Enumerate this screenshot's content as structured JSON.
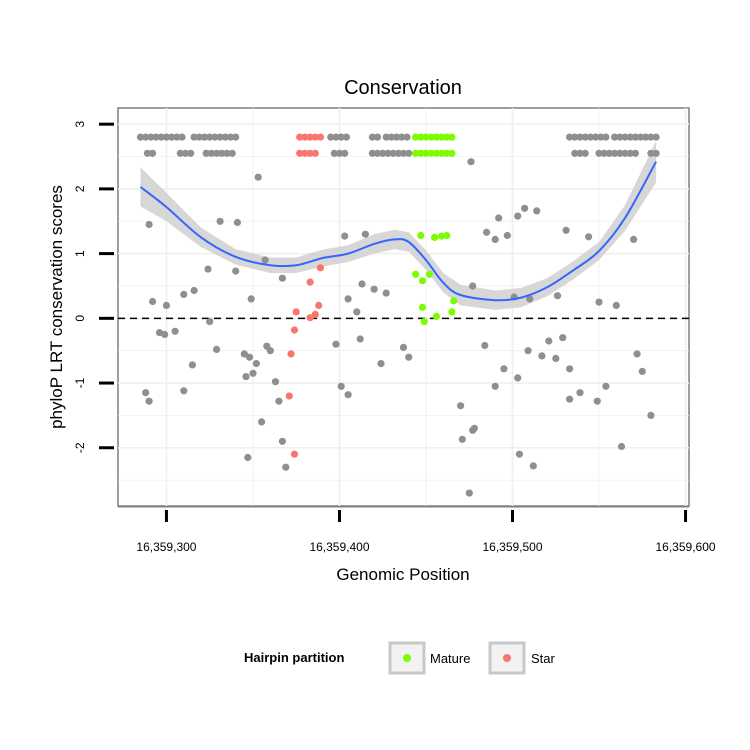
{
  "chart_data": {
    "type": "scatter",
    "title": "Conservation",
    "xlabel": "Genomic Position",
    "ylabel": "phyloP LRT conservation scores",
    "xlim": [
      16359272,
      16359602
    ],
    "ylim": [
      -2.9,
      3.25
    ],
    "x_ticks": [
      {
        "value": 16359300,
        "label": "16,359,300"
      },
      {
        "value": 16359400,
        "label": "16,359,400"
      },
      {
        "value": 16359500,
        "label": "16,359,500"
      },
      {
        "value": 16359600,
        "label": "16,359,600"
      }
    ],
    "y_ticks": [
      {
        "value": -2,
        "label": "-2"
      },
      {
        "value": -1,
        "label": "-1"
      },
      {
        "value": 0,
        "label": "0"
      },
      {
        "value": 1,
        "label": "1"
      },
      {
        "value": 2,
        "label": "2"
      },
      {
        "value": 3,
        "label": "3"
      }
    ],
    "grid": true,
    "reference_line": {
      "y": 0,
      "style": "dashed"
    },
    "legend": {
      "title": "Hairpin partition",
      "position": "bottom",
      "entries": [
        {
          "label": "Mature",
          "color": "#7cfc00"
        },
        {
          "label": "Star",
          "color": "#f8766d"
        }
      ]
    },
    "colors": {
      "other": "#8f8f8f",
      "Mature": "#7cfc00",
      "Star": "#f8766d",
      "smooth_line": "#3366ff",
      "ribbon": "#d3d3d3"
    },
    "series": [
      {
        "name": "Mature",
        "points": [
          [
            16359444,
            2.8
          ],
          [
            16359447,
            2.8
          ],
          [
            16359450,
            2.8
          ],
          [
            16359453,
            2.8
          ],
          [
            16359456,
            2.8
          ],
          [
            16359459,
            2.8
          ],
          [
            16359462,
            2.8
          ],
          [
            16359465,
            2.8
          ],
          [
            16359444,
            2.55
          ],
          [
            16359447,
            2.55
          ],
          [
            16359450,
            2.55
          ],
          [
            16359453,
            2.55
          ],
          [
            16359456,
            2.55
          ],
          [
            16359459,
            2.55
          ],
          [
            16359462,
            2.55
          ],
          [
            16359465,
            2.55
          ],
          [
            16359447,
            1.28
          ],
          [
            16359455,
            1.25
          ],
          [
            16359459,
            1.27
          ],
          [
            16359462,
            1.28
          ],
          [
            16359452,
            0.68
          ],
          [
            16359444,
            0.68
          ],
          [
            16359448,
            0.58
          ],
          [
            16359466,
            0.27
          ],
          [
            16359448,
            0.17
          ],
          [
            16359465,
            0.1
          ],
          [
            16359456,
            0.03
          ],
          [
            16359449,
            -0.05
          ]
        ]
      },
      {
        "name": "Star",
        "points": [
          [
            16359377,
            2.8
          ],
          [
            16359380,
            2.8
          ],
          [
            16359383,
            2.8
          ],
          [
            16359386,
            2.8
          ],
          [
            16359389,
            2.8
          ],
          [
            16359377,
            2.55
          ],
          [
            16359380,
            2.55
          ],
          [
            16359383,
            2.55
          ],
          [
            16359386,
            2.55
          ],
          [
            16359389,
            0.78
          ],
          [
            16359383,
            0.56
          ],
          [
            16359388,
            0.2
          ],
          [
            16359375,
            0.1
          ],
          [
            16359386,
            0.06
          ],
          [
            16359383,
            0.01
          ],
          [
            16359374,
            -0.18
          ],
          [
            16359372,
            -0.55
          ],
          [
            16359371,
            -1.2
          ],
          [
            16359374,
            -2.1
          ]
        ]
      },
      {
        "name": "",
        "points": [
          [
            16359285,
            2.8
          ],
          [
            16359288,
            2.8
          ],
          [
            16359291,
            2.8
          ],
          [
            16359294,
            2.8
          ],
          [
            16359297,
            2.8
          ],
          [
            16359300,
            2.8
          ],
          [
            16359303,
            2.8
          ],
          [
            16359306,
            2.8
          ],
          [
            16359309,
            2.8
          ],
          [
            16359316,
            2.8
          ],
          [
            16359319,
            2.8
          ],
          [
            16359322,
            2.8
          ],
          [
            16359325,
            2.8
          ],
          [
            16359328,
            2.8
          ],
          [
            16359331,
            2.8
          ],
          [
            16359334,
            2.8
          ],
          [
            16359337,
            2.8
          ],
          [
            16359340,
            2.8
          ],
          [
            16359395,
            2.8
          ],
          [
            16359398,
            2.8
          ],
          [
            16359401,
            2.8
          ],
          [
            16359404,
            2.8
          ],
          [
            16359419,
            2.8
          ],
          [
            16359422,
            2.8
          ],
          [
            16359427,
            2.8
          ],
          [
            16359430,
            2.8
          ],
          [
            16359433,
            2.8
          ],
          [
            16359436,
            2.8
          ],
          [
            16359439,
            2.8
          ],
          [
            16359533,
            2.8
          ],
          [
            16359536,
            2.8
          ],
          [
            16359539,
            2.8
          ],
          [
            16359542,
            2.8
          ],
          [
            16359545,
            2.8
          ],
          [
            16359548,
            2.8
          ],
          [
            16359551,
            2.8
          ],
          [
            16359554,
            2.8
          ],
          [
            16359559,
            2.8
          ],
          [
            16359562,
            2.8
          ],
          [
            16359565,
            2.8
          ],
          [
            16359568,
            2.8
          ],
          [
            16359571,
            2.8
          ],
          [
            16359574,
            2.8
          ],
          [
            16359577,
            2.8
          ],
          [
            16359580,
            2.8
          ],
          [
            16359583,
            2.8
          ],
          [
            16359289,
            2.55
          ],
          [
            16359292,
            2.55
          ],
          [
            16359308,
            2.55
          ],
          [
            16359311,
            2.55
          ],
          [
            16359314,
            2.55
          ],
          [
            16359323,
            2.55
          ],
          [
            16359326,
            2.55
          ],
          [
            16359329,
            2.55
          ],
          [
            16359332,
            2.55
          ],
          [
            16359335,
            2.55
          ],
          [
            16359338,
            2.55
          ],
          [
            16359397,
            2.55
          ],
          [
            16359400,
            2.55
          ],
          [
            16359403,
            2.55
          ],
          [
            16359419,
            2.55
          ],
          [
            16359422,
            2.55
          ],
          [
            16359425,
            2.55
          ],
          [
            16359428,
            2.55
          ],
          [
            16359431,
            2.55
          ],
          [
            16359434,
            2.55
          ],
          [
            16359437,
            2.55
          ],
          [
            16359440,
            2.55
          ],
          [
            16359536,
            2.55
          ],
          [
            16359539,
            2.55
          ],
          [
            16359542,
            2.55
          ],
          [
            16359550,
            2.55
          ],
          [
            16359553,
            2.55
          ],
          [
            16359556,
            2.55
          ],
          [
            16359559,
            2.55
          ],
          [
            16359562,
            2.55
          ],
          [
            16359565,
            2.55
          ],
          [
            16359568,
            2.55
          ],
          [
            16359571,
            2.55
          ],
          [
            16359580,
            2.55
          ],
          [
            16359583,
            2.55
          ],
          [
            16359353,
            2.18
          ],
          [
            16359476,
            2.42
          ],
          [
            16359503,
            1.58
          ],
          [
            16359507,
            1.7
          ],
          [
            16359514,
            1.66
          ],
          [
            16359492,
            1.55
          ],
          [
            16359485,
            1.33
          ],
          [
            16359531,
            1.36
          ],
          [
            16359544,
            1.26
          ],
          [
            16359570,
            1.22
          ],
          [
            16359290,
            1.45
          ],
          [
            16359331,
            1.5
          ],
          [
            16359341,
            1.48
          ],
          [
            16359324,
            0.76
          ],
          [
            16359340,
            0.73
          ],
          [
            16359357,
            0.9
          ],
          [
            16359403,
            1.27
          ],
          [
            16359415,
            1.3
          ],
          [
            16359497,
            1.28
          ],
          [
            16359490,
            1.22
          ],
          [
            16359477,
            0.5
          ],
          [
            16359501,
            0.33
          ],
          [
            16359510,
            0.3
          ],
          [
            16359526,
            0.35
          ],
          [
            16359550,
            0.25
          ],
          [
            16359560,
            0.2
          ],
          [
            16359300,
            0.2
          ],
          [
            16359310,
            0.37
          ],
          [
            16359316,
            0.43
          ],
          [
            16359349,
            0.3
          ],
          [
            16359367,
            0.62
          ],
          [
            16359405,
            0.3
          ],
          [
            16359410,
            0.1
          ],
          [
            16359413,
            0.53
          ],
          [
            16359420,
            0.45
          ],
          [
            16359427,
            0.39
          ],
          [
            16359292,
            0.26
          ],
          [
            16359296,
            -0.22
          ],
          [
            16359299,
            -0.25
          ],
          [
            16359305,
            -0.2
          ],
          [
            16359315,
            -0.72
          ],
          [
            16359325,
            -0.05
          ],
          [
            16359345,
            -0.55
          ],
          [
            16359346,
            -0.9
          ],
          [
            16359350,
            -0.85
          ],
          [
            16359352,
            -0.7
          ],
          [
            16359358,
            -0.43
          ],
          [
            16359360,
            -0.5
          ],
          [
            16359363,
            -0.98
          ],
          [
            16359365,
            -1.28
          ],
          [
            16359367,
            -1.9
          ],
          [
            16359347,
            -2.15
          ],
          [
            16359369,
            -2.3
          ],
          [
            16359355,
            -1.6
          ],
          [
            16359398,
            -0.4
          ],
          [
            16359401,
            -1.05
          ],
          [
            16359405,
            -1.18
          ],
          [
            16359412,
            -0.32
          ],
          [
            16359424,
            -0.7
          ],
          [
            16359437,
            -0.45
          ],
          [
            16359440,
            -0.6
          ],
          [
            16359470,
            -1.35
          ],
          [
            16359471,
            -1.87
          ],
          [
            16359477,
            -1.73
          ],
          [
            16359478,
            -1.7
          ],
          [
            16359475,
            -2.7
          ],
          [
            16359484,
            -0.42
          ],
          [
            16359490,
            -1.05
          ],
          [
            16359495,
            -0.78
          ],
          [
            16359503,
            -0.92
          ],
          [
            16359509,
            -0.5
          ],
          [
            16359517,
            -0.58
          ],
          [
            16359525,
            -0.62
          ],
          [
            16359533,
            -0.78
          ],
          [
            16359539,
            -1.15
          ],
          [
            16359549,
            -1.28
          ],
          [
            16359554,
            -1.05
          ],
          [
            16359563,
            -1.98
          ],
          [
            16359572,
            -0.55
          ],
          [
            16359575,
            -0.82
          ],
          [
            16359580,
            -1.5
          ],
          [
            16359504,
            -2.1
          ],
          [
            16359512,
            -2.28
          ],
          [
            16359521,
            -0.35
          ],
          [
            16359529,
            -0.3
          ],
          [
            16359533,
            -1.25
          ],
          [
            16359288,
            -1.15
          ],
          [
            16359290,
            -1.28
          ],
          [
            16359310,
            -1.12
          ],
          [
            16359329,
            -0.48
          ],
          [
            16359348,
            -0.6
          ]
        ]
      }
    ],
    "smooth": [
      [
        16359285,
        2.03,
        1.73,
        2.33
      ],
      [
        16359300,
        1.72,
        1.5,
        1.94
      ],
      [
        16359320,
        1.25,
        1.1,
        1.4
      ],
      [
        16359340,
        0.95,
        0.83,
        1.07
      ],
      [
        16359360,
        0.82,
        0.7,
        0.94
      ],
      [
        16359375,
        0.82,
        0.7,
        0.94
      ],
      [
        16359390,
        0.93,
        0.8,
        1.06
      ],
      [
        16359405,
        1.0,
        0.87,
        1.13
      ],
      [
        16359420,
        1.15,
        1.0,
        1.3
      ],
      [
        16359432,
        1.22,
        1.07,
        1.37
      ],
      [
        16359440,
        1.18,
        1.03,
        1.33
      ],
      [
        16359450,
        0.9,
        0.75,
        1.05
      ],
      [
        16359460,
        0.55,
        0.4,
        0.7
      ],
      [
        16359470,
        0.36,
        0.2,
        0.52
      ],
      [
        16359490,
        0.28,
        0.13,
        0.43
      ],
      [
        16359505,
        0.32,
        0.17,
        0.47
      ],
      [
        16359520,
        0.48,
        0.34,
        0.62
      ],
      [
        16359535,
        0.74,
        0.6,
        0.88
      ],
      [
        16359550,
        1.04,
        0.9,
        1.18
      ],
      [
        16359565,
        1.55,
        1.35,
        1.75
      ],
      [
        16359583,
        2.42,
        2.1,
        2.74
      ]
    ]
  }
}
